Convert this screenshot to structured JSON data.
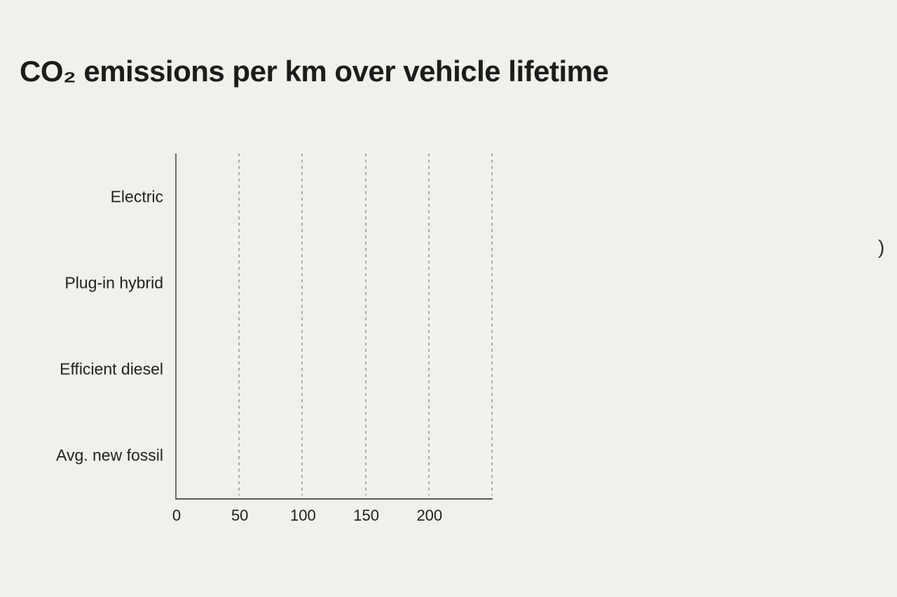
{
  "title": {
    "text": "CO₂ emissions per km over vehicle lifetime",
    "color": "#1c1c1c"
  },
  "stray_fragment": {
    "text": ")"
  },
  "chart_data": {
    "type": "bar",
    "orientation": "horizontal",
    "title": "CO₂ emissions per km over vehicle lifetime",
    "categories": [
      "Electric",
      "Plug-in hybrid",
      "Efficient diesel",
      "Avg. new fossil"
    ],
    "values": [
      0,
      0,
      0,
      0
    ],
    "bars_visible": false,
    "xlabel": "",
    "ylabel": "",
    "xlim": [
      0,
      250
    ],
    "xticks": [
      0,
      50,
      100,
      150,
      200
    ],
    "gridlines_x": [
      50,
      100,
      150,
      200,
      250
    ],
    "grid_style": "dotted-vertical",
    "legend": "none",
    "colors": {
      "background": "#f0f1ea",
      "axis": "#606060",
      "gridline": "#a8a8ac",
      "label": "#1f1f1f"
    }
  }
}
